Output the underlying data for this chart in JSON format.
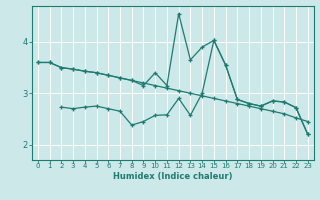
{
  "xlabel": "Humidex (Indice chaleur)",
  "bg_color": "#cce8e8",
  "grid_color": "#ffffff",
  "line_color": "#1e7b72",
  "xlim": [
    -0.5,
    23.5
  ],
  "ylim": [
    1.7,
    4.7
  ],
  "xticks": [
    0,
    1,
    2,
    3,
    4,
    5,
    6,
    7,
    8,
    9,
    10,
    11,
    12,
    13,
    14,
    15,
    16,
    17,
    18,
    19,
    20,
    21,
    22,
    23
  ],
  "yticks": [
    2,
    3,
    4
  ],
  "line1_x": [
    0,
    1,
    2,
    3,
    4,
    5,
    6,
    7,
    8,
    9,
    10,
    11,
    12,
    13,
    14,
    15,
    16,
    17,
    18,
    19,
    20,
    21,
    22,
    23
  ],
  "line1_y": [
    3.6,
    3.6,
    3.5,
    3.47,
    3.43,
    3.4,
    3.35,
    3.3,
    3.25,
    3.2,
    3.15,
    3.1,
    3.05,
    3.0,
    2.95,
    2.9,
    2.85,
    2.8,
    2.75,
    2.7,
    2.65,
    2.6,
    2.52,
    2.45
  ],
  "line2_x": [
    0,
    1,
    2,
    3,
    4,
    5,
    6,
    7,
    8,
    9,
    10,
    11,
    12,
    13,
    14,
    15,
    16,
    17,
    18,
    19,
    20,
    21,
    22,
    23
  ],
  "line2_y": [
    3.6,
    3.6,
    3.5,
    3.47,
    3.43,
    3.4,
    3.35,
    3.3,
    3.25,
    3.15,
    3.4,
    3.15,
    4.55,
    3.65,
    3.9,
    4.03,
    3.55,
    2.88,
    2.8,
    2.75,
    2.85,
    2.83,
    2.72,
    2.2
  ],
  "line3_x": [
    2,
    3,
    4,
    5,
    6,
    7,
    8,
    9,
    10,
    11,
    12,
    13,
    14,
    15,
    16,
    17,
    18,
    19,
    20,
    21,
    22,
    23
  ],
  "line3_y": [
    2.73,
    2.7,
    2.73,
    2.75,
    2.7,
    2.65,
    2.38,
    2.45,
    2.57,
    2.58,
    2.9,
    2.57,
    3.0,
    4.03,
    3.55,
    2.88,
    2.8,
    2.75,
    2.85,
    2.83,
    2.72,
    2.2
  ]
}
